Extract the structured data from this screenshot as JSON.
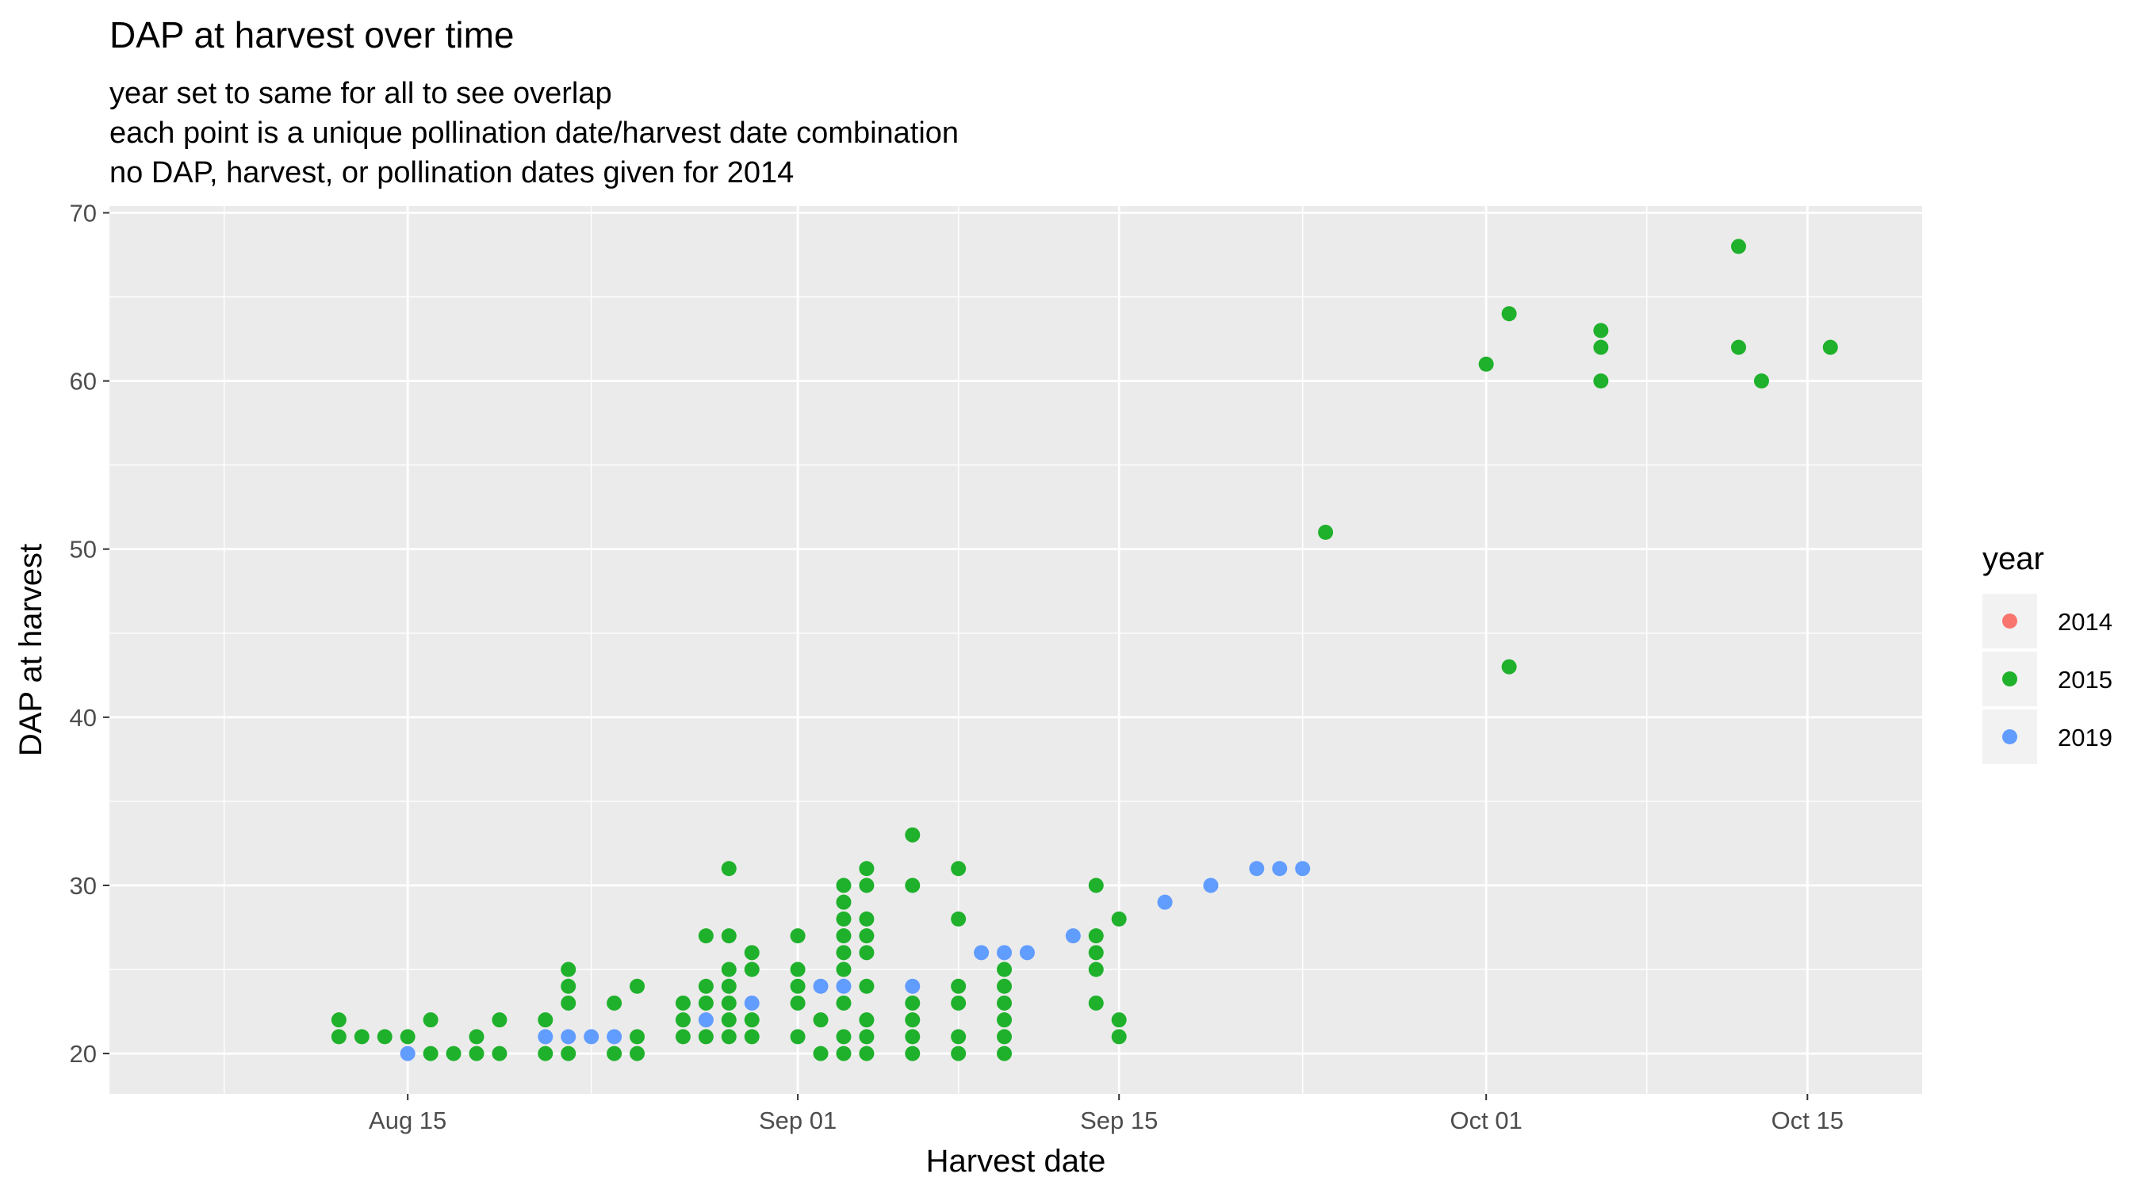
{
  "chart_data": {
    "type": "scatter",
    "title": "DAP at harvest over time",
    "subtitle": [
      "year set to same for all to see overlap",
      "each point is a unique pollination date/harvest date combination",
      "no DAP, harvest, or pollination dates given for 2014"
    ],
    "xlabel": "Harvest date",
    "ylabel": "DAP at harvest",
    "xlim": [
      "2019-08-02",
      "2019-10-20"
    ],
    "ylim": [
      17.6,
      70.4
    ],
    "x_ticks": [
      {
        "date": "2019-08-15",
        "label": "Aug 15"
      },
      {
        "date": "2019-09-01",
        "label": "Sep 01"
      },
      {
        "date": "2019-09-15",
        "label": "Sep 15"
      },
      {
        "date": "2019-10-01",
        "label": "Oct 01"
      },
      {
        "date": "2019-10-15",
        "label": "Oct 15"
      }
    ],
    "x_minor_dates": [
      "2019-08-07",
      "2019-08-23",
      "2019-09-08",
      "2019-09-23",
      "2019-10-08"
    ],
    "y_ticks": [
      20,
      30,
      40,
      50,
      60,
      70
    ],
    "grid": true,
    "legend": {
      "title": "year",
      "placement": "right"
    },
    "series": [
      {
        "name": "2014",
        "color": "#F8766D",
        "points": []
      },
      {
        "name": "2015",
        "color": "#1FB12B",
        "points": [
          [
            "2019-08-12",
            22
          ],
          [
            "2019-08-12",
            21
          ],
          [
            "2019-08-13",
            21
          ],
          [
            "2019-08-14",
            21
          ],
          [
            "2019-08-15",
            21
          ],
          [
            "2019-08-16",
            22
          ],
          [
            "2019-08-16",
            20
          ],
          [
            "2019-08-17",
            20
          ],
          [
            "2019-08-18",
            21
          ],
          [
            "2019-08-18",
            20
          ],
          [
            "2019-08-19",
            22
          ],
          [
            "2019-08-19",
            20
          ],
          [
            "2019-08-21",
            22
          ],
          [
            "2019-08-21",
            20
          ],
          [
            "2019-08-22",
            25
          ],
          [
            "2019-08-22",
            24
          ],
          [
            "2019-08-22",
            23
          ],
          [
            "2019-08-22",
            20
          ],
          [
            "2019-08-24",
            23
          ],
          [
            "2019-08-24",
            20
          ],
          [
            "2019-08-25",
            24
          ],
          [
            "2019-08-25",
            21
          ],
          [
            "2019-08-25",
            20
          ],
          [
            "2019-08-27",
            23
          ],
          [
            "2019-08-27",
            22
          ],
          [
            "2019-08-27",
            21
          ],
          [
            "2019-08-28",
            27
          ],
          [
            "2019-08-28",
            24
          ],
          [
            "2019-08-28",
            23
          ],
          [
            "2019-08-28",
            21
          ],
          [
            "2019-08-29",
            31
          ],
          [
            "2019-08-29",
            27
          ],
          [
            "2019-08-29",
            25
          ],
          [
            "2019-08-29",
            24
          ],
          [
            "2019-08-29",
            23
          ],
          [
            "2019-08-29",
            22
          ],
          [
            "2019-08-29",
            21
          ],
          [
            "2019-08-30",
            26
          ],
          [
            "2019-08-30",
            25
          ],
          [
            "2019-08-30",
            22
          ],
          [
            "2019-08-30",
            21
          ],
          [
            "2019-09-01",
            27
          ],
          [
            "2019-09-01",
            25
          ],
          [
            "2019-09-01",
            24
          ],
          [
            "2019-09-01",
            23
          ],
          [
            "2019-09-01",
            21
          ],
          [
            "2019-09-02",
            22
          ],
          [
            "2019-09-02",
            20
          ],
          [
            "2019-09-03",
            30
          ],
          [
            "2019-09-03",
            29
          ],
          [
            "2019-09-03",
            28
          ],
          [
            "2019-09-03",
            27
          ],
          [
            "2019-09-03",
            26
          ],
          [
            "2019-09-03",
            25
          ],
          [
            "2019-09-03",
            23
          ],
          [
            "2019-09-03",
            21
          ],
          [
            "2019-09-03",
            20
          ],
          [
            "2019-09-04",
            31
          ],
          [
            "2019-09-04",
            30
          ],
          [
            "2019-09-04",
            28
          ],
          [
            "2019-09-04",
            27
          ],
          [
            "2019-09-04",
            26
          ],
          [
            "2019-09-04",
            24
          ],
          [
            "2019-09-04",
            22
          ],
          [
            "2019-09-04",
            21
          ],
          [
            "2019-09-04",
            20
          ],
          [
            "2019-09-06",
            33
          ],
          [
            "2019-09-06",
            30
          ],
          [
            "2019-09-06",
            23
          ],
          [
            "2019-09-06",
            22
          ],
          [
            "2019-09-06",
            21
          ],
          [
            "2019-09-06",
            20
          ],
          [
            "2019-09-08",
            31
          ],
          [
            "2019-09-08",
            28
          ],
          [
            "2019-09-08",
            24
          ],
          [
            "2019-09-08",
            23
          ],
          [
            "2019-09-08",
            21
          ],
          [
            "2019-09-08",
            20
          ],
          [
            "2019-09-10",
            25
          ],
          [
            "2019-09-10",
            24
          ],
          [
            "2019-09-10",
            23
          ],
          [
            "2019-09-10",
            22
          ],
          [
            "2019-09-10",
            21
          ],
          [
            "2019-09-10",
            20
          ],
          [
            "2019-09-14",
            30
          ],
          [
            "2019-09-14",
            27
          ],
          [
            "2019-09-14",
            26
          ],
          [
            "2019-09-14",
            25
          ],
          [
            "2019-09-14",
            23
          ],
          [
            "2019-09-15",
            28
          ],
          [
            "2019-09-15",
            22
          ],
          [
            "2019-09-15",
            21
          ],
          [
            "2019-09-24",
            51
          ],
          [
            "2019-10-01",
            61
          ],
          [
            "2019-10-02",
            64
          ],
          [
            "2019-10-02",
            43
          ],
          [
            "2019-10-06",
            63
          ],
          [
            "2019-10-06",
            62
          ],
          [
            "2019-10-06",
            60
          ],
          [
            "2019-10-12",
            68
          ],
          [
            "2019-10-12",
            62
          ],
          [
            "2019-10-13",
            60
          ],
          [
            "2019-10-16",
            62
          ]
        ]
      },
      {
        "name": "2019",
        "color": "#619CFF",
        "points": [
          [
            "2019-08-15",
            20
          ],
          [
            "2019-08-21",
            21
          ],
          [
            "2019-08-22",
            21
          ],
          [
            "2019-08-23",
            21
          ],
          [
            "2019-08-24",
            21
          ],
          [
            "2019-08-28",
            22
          ],
          [
            "2019-08-30",
            23
          ],
          [
            "2019-09-02",
            24
          ],
          [
            "2019-09-03",
            24
          ],
          [
            "2019-09-06",
            24
          ],
          [
            "2019-09-09",
            26
          ],
          [
            "2019-09-10",
            26
          ],
          [
            "2019-09-11",
            26
          ],
          [
            "2019-09-13",
            27
          ],
          [
            "2019-09-17",
            29
          ],
          [
            "2019-09-19",
            30
          ],
          [
            "2019-09-21",
            31
          ],
          [
            "2019-09-22",
            31
          ],
          [
            "2019-09-23",
            31
          ]
        ]
      }
    ]
  }
}
